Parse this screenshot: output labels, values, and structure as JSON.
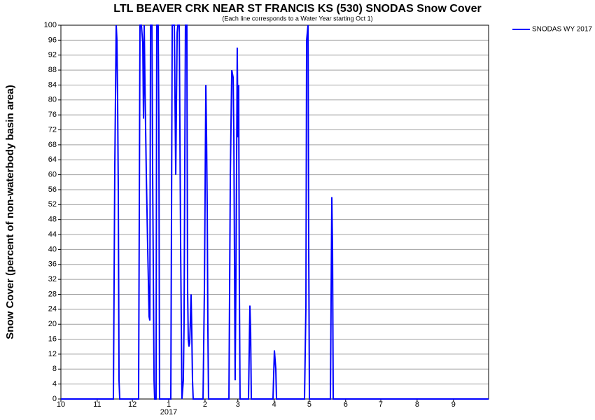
{
  "chart_data": {
    "type": "line",
    "title": "LTL BEAVER CRK NEAR ST FRANCIS KS (530) SNODAS Snow Cover",
    "subtitle": "(Each line corresponds to a Water Year starting Oct 1)",
    "ylabel": "Snow Cover (percent of non-waterbody basin area)",
    "x_year_label": "2017",
    "xlim": [
      0,
      365
    ],
    "xticks": [
      {
        "value": 0,
        "label": "10"
      },
      {
        "value": 31,
        "label": "11"
      },
      {
        "value": 61,
        "label": "12"
      },
      {
        "value": 92,
        "label": "1"
      },
      {
        "value": 123,
        "label": "2"
      },
      {
        "value": 151,
        "label": "3"
      },
      {
        "value": 182,
        "label": "4"
      },
      {
        "value": 212,
        "label": "5"
      },
      {
        "value": 243,
        "label": "6"
      },
      {
        "value": 273,
        "label": "7"
      },
      {
        "value": 304,
        "label": "8"
      },
      {
        "value": 335,
        "label": "9"
      }
    ],
    "ylim": [
      0,
      100
    ],
    "yticks": [
      0,
      4,
      8,
      12,
      16,
      20,
      24,
      28,
      32,
      36,
      40,
      44,
      48,
      52,
      56,
      60,
      64,
      68,
      72,
      76,
      80,
      84,
      88,
      92,
      96,
      100
    ],
    "grid": true,
    "legend": "outside-top-right",
    "x": [
      0,
      44.8,
      46.0,
      47.2,
      47.8,
      48.4,
      49.0,
      49.6,
      50.2,
      66.3,
      67.5,
      68.7,
      69.9,
      70.5,
      71.1,
      71.7,
      72.9,
      74.1,
      75.3,
      75.9,
      76.5,
      77.7,
      78.3,
      79.5,
      80.0,
      81.2,
      81.8,
      83.0,
      83.6,
      84.2,
      93.8,
      95.0,
      96.8,
      98.0,
      99.2,
      99.8,
      101.0,
      102.2,
      103.3,
      104.5,
      105.1,
      105.7,
      106.3,
      107.5,
      108.1,
      108.7,
      109.3,
      109.9,
      110.5,
      111.1,
      111.7,
      112.3,
      112.9,
      121.3,
      122.5,
      123.7,
      124.3,
      124.9,
      125.4,
      126.0,
      143.4,
      144.6,
      145.8,
      147.0,
      147.6,
      148.1,
      148.7,
      149.3,
      149.9,
      150.5,
      151.1,
      151.7,
      152.3,
      152.9,
      160.1,
      161.3,
      161.9,
      162.5,
      181.0,
      182.2,
      183.4,
      184.0,
      207.9,
      209.1,
      209.7,
      210.9,
      211.5,
      212.1,
      230.0,
      231.2,
      231.8,
      232.4,
      365
    ],
    "series": [
      {
        "name": "SNODAS WY 2017",
        "color": "#0000ff",
        "values": [
          0,
          0,
          62,
          100,
          96,
          80,
          55,
          5,
          0,
          0,
          100,
          100,
          95,
          75,
          100,
          85,
          60,
          40,
          22,
          21,
          100,
          100,
          60,
          5,
          0,
          0,
          100,
          100,
          75,
          0,
          0,
          100,
          100,
          60,
          98,
          100,
          100,
          40,
          0,
          5,
          20,
          60,
          100,
          100,
          30,
          16,
          14,
          15,
          21,
          28,
          18,
          5,
          0,
          0,
          30,
          84,
          70,
          50,
          20,
          0,
          0,
          60,
          88,
          86,
          70,
          40,
          5,
          30,
          60,
          94,
          70,
          84,
          30,
          0,
          0,
          25,
          18,
          0,
          0,
          13,
          8,
          0,
          0,
          25,
          96,
          100,
          40,
          0,
          0,
          54,
          40,
          0,
          0
        ]
      }
    ]
  }
}
